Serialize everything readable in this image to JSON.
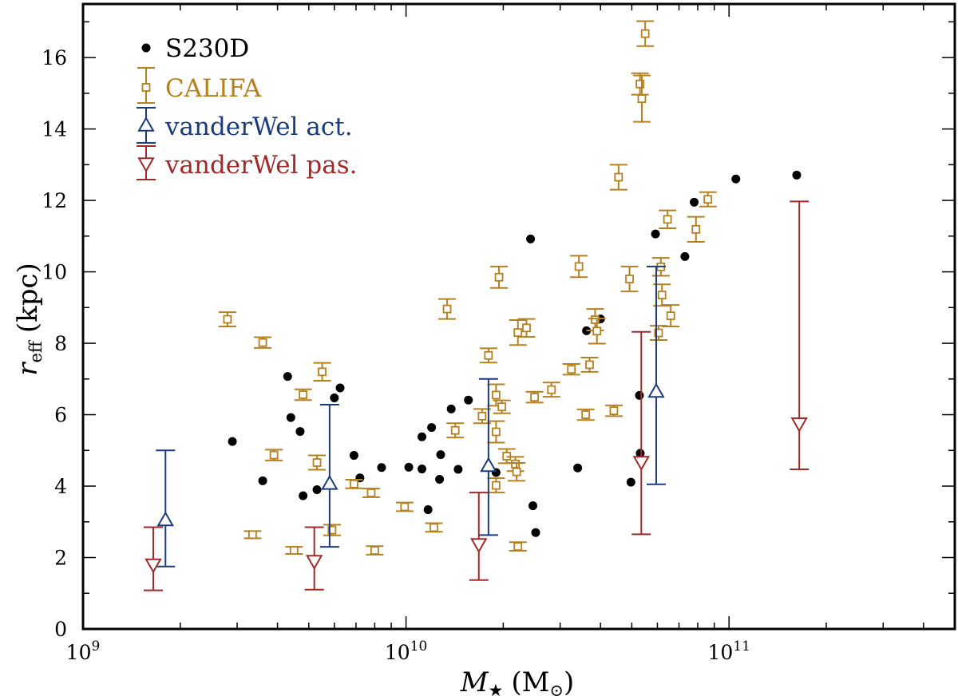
{
  "chart_data": {
    "type": "scatter",
    "x_scale": "log",
    "xlim": [
      1000000000.0,
      500000000000.0
    ],
    "ylim": [
      0,
      17.5
    ],
    "xlabel": {
      "main": "M",
      "sub": "★",
      "unit": "(M",
      "unit_sub": "⊙",
      "close": ")"
    },
    "ylabel": {
      "main": "r",
      "sub": "eff",
      "unit": "(kpc)"
    },
    "x_ticks": [
      {
        "value": 1000000000.0,
        "base": "10",
        "exp": "9"
      },
      {
        "value": 10000000000.0,
        "base": "10",
        "exp": "10"
      },
      {
        "value": 100000000000.0,
        "base": "10",
        "exp": "11"
      }
    ],
    "y_ticks": [
      {
        "value": 0,
        "label": "0"
      },
      {
        "value": 2,
        "label": "2"
      },
      {
        "value": 4,
        "label": "4"
      },
      {
        "value": 6,
        "label": "6"
      },
      {
        "value": 8,
        "label": "8"
      },
      {
        "value": 10,
        "label": "10"
      },
      {
        "value": 12,
        "label": "12"
      },
      {
        "value": 14,
        "label": "14"
      },
      {
        "value": 16,
        "label": "16"
      }
    ],
    "grid": false,
    "legend_position": "top-left",
    "series": [
      {
        "name": "S230D",
        "marker": "filled-circle",
        "color": "#000000",
        "points": [
          [
            2900000000.0,
            5.25
          ],
          [
            3600000000.0,
            4.15
          ],
          [
            4300000000.0,
            7.07
          ],
          [
            4400000000.0,
            5.92
          ],
          [
            4700000000.0,
            5.53
          ],
          [
            4800000000.0,
            3.73
          ],
          [
            5300000000.0,
            3.9
          ],
          [
            6000000000.0,
            6.47
          ],
          [
            6250000000.0,
            6.75
          ],
          [
            6900000000.0,
            4.86
          ],
          [
            7200000000.0,
            4.23
          ],
          [
            8400000000.0,
            4.52
          ],
          [
            10200000000.0,
            4.53
          ],
          [
            11200000000.0,
            4.48
          ],
          [
            11200000000.0,
            5.38
          ],
          [
            11700000000.0,
            3.34
          ],
          [
            12000000000.0,
            5.64
          ],
          [
            12700000000.0,
            4.19
          ],
          [
            12800000000.0,
            4.88
          ],
          [
            13800000000.0,
            6.16
          ],
          [
            14500000000.0,
            4.47
          ],
          [
            15600000000.0,
            6.41
          ],
          [
            19000000000.0,
            4.38
          ],
          [
            24300000000.0,
            10.92
          ],
          [
            24700000000.0,
            3.45
          ],
          [
            25200000000.0,
            2.7
          ],
          [
            34000000000.0,
            4.51
          ],
          [
            36200000000.0,
            8.35
          ],
          [
            40000000000.0,
            8.68
          ],
          [
            49700000000.0,
            4.11
          ],
          [
            52800000000.0,
            6.54
          ],
          [
            53100000000.0,
            4.92
          ],
          [
            59200000000.0,
            11.06
          ],
          [
            73000000000.0,
            10.43
          ],
          [
            78000000000.0,
            11.95
          ],
          [
            105000000000.0,
            12.6
          ],
          [
            162000000000.0,
            12.71
          ]
        ]
      },
      {
        "name": "CALIFA",
        "marker": "open-square",
        "color": "#b5801f",
        "points": [
          [
            2800000000.0,
            8.67,
            0.2
          ],
          [
            3350000000.0,
            2.64,
            0.1
          ],
          [
            3600000000.0,
            8.02,
            0.15
          ],
          [
            3900000000.0,
            4.87,
            0.15
          ],
          [
            4500000000.0,
            2.2,
            0.1
          ],
          [
            4800000000.0,
            6.56,
            0.15
          ],
          [
            5300000000.0,
            4.66,
            0.2
          ],
          [
            5500000000.0,
            7.2,
            0.25
          ],
          [
            5900000000.0,
            2.77,
            0.15
          ],
          [
            6900000000.0,
            4.06,
            0.12
          ],
          [
            7800000000.0,
            3.81,
            0.12
          ],
          [
            8000000000.0,
            2.2,
            0.12
          ],
          [
            9900000000.0,
            3.42,
            0.12
          ],
          [
            12200000000.0,
            2.84,
            0.12
          ],
          [
            13400000000.0,
            8.96,
            0.28
          ],
          [
            14200000000.0,
            5.56,
            0.2
          ],
          [
            17200000000.0,
            5.96,
            0.2
          ],
          [
            18000000000.0,
            7.66,
            0.2
          ],
          [
            19000000000.0,
            6.55,
            0.3
          ],
          [
            19000000000.0,
            5.52,
            0.3
          ],
          [
            19000000000.0,
            4.02,
            0.2
          ],
          [
            19400000000.0,
            9.85,
            0.3
          ],
          [
            19800000000.0,
            6.22,
            0.18
          ],
          [
            20500000000.0,
            4.84,
            0.2
          ],
          [
            21800000000.0,
            4.62,
            0.2
          ],
          [
            22000000000.0,
            4.4,
            0.25
          ],
          [
            22200000000.0,
            2.31,
            0.12
          ],
          [
            22200000000.0,
            8.3,
            0.35
          ],
          [
            23600000000.0,
            8.43,
            0.25
          ],
          [
            25000000000.0,
            6.49,
            0.15
          ],
          [
            28200000000.0,
            6.7,
            0.2
          ],
          [
            32500000000.0,
            7.27,
            0.15
          ],
          [
            34300000000.0,
            10.15,
            0.3
          ],
          [
            36000000000.0,
            6.0,
            0.15
          ],
          [
            37000000000.0,
            7.4,
            0.2
          ],
          [
            38500000000.0,
            8.66,
            0.3
          ],
          [
            39000000000.0,
            8.34,
            0.35
          ],
          [
            44000000000.0,
            6.11,
            0.15
          ],
          [
            45500000000.0,
            12.65,
            0.35
          ],
          [
            49200000000.0,
            9.8,
            0.35
          ],
          [
            53000000000.0,
            15.26,
            0.3
          ],
          [
            53700000000.0,
            14.85,
            0.65
          ],
          [
            55000000000.0,
            16.67,
            0.35
          ],
          [
            60500000000.0,
            8.29,
            0.2
          ],
          [
            61500000000.0,
            10.14,
            0.25
          ],
          [
            62000000000.0,
            9.35,
            0.3
          ],
          [
            64500000000.0,
            11.47,
            0.25
          ],
          [
            66000000000.0,
            8.77,
            0.3
          ],
          [
            79000000000.0,
            11.19,
            0.35
          ],
          [
            86000000000.0,
            12.03,
            0.2
          ]
        ]
      },
      {
        "name": "vanderWel act.",
        "marker": "open-triangle-up",
        "color": "#1b3c7a",
        "points": [
          [
            1800000000.0,
            3.05,
            1.75,
            5.0
          ],
          [
            5800000000.0,
            4.07,
            2.3,
            6.28
          ],
          [
            18000000000.0,
            4.57,
            2.63,
            7.0
          ],
          [
            59500000000.0,
            6.65,
            4.05,
            10.15
          ]
        ]
      },
      {
        "name": "vanderWel pas.",
        "marker": "open-triangle-down",
        "color": "#a02a2a",
        "points": [
          [
            1650000000.0,
            1.8,
            1.08,
            2.85
          ],
          [
            5200000000.0,
            1.9,
            1.1,
            2.85
          ],
          [
            16800000000.0,
            2.37,
            1.37,
            3.82
          ],
          [
            53500000000.0,
            4.67,
            2.65,
            8.32
          ],
          [
            165000000000.0,
            5.75,
            4.47,
            11.97
          ]
        ]
      }
    ]
  }
}
